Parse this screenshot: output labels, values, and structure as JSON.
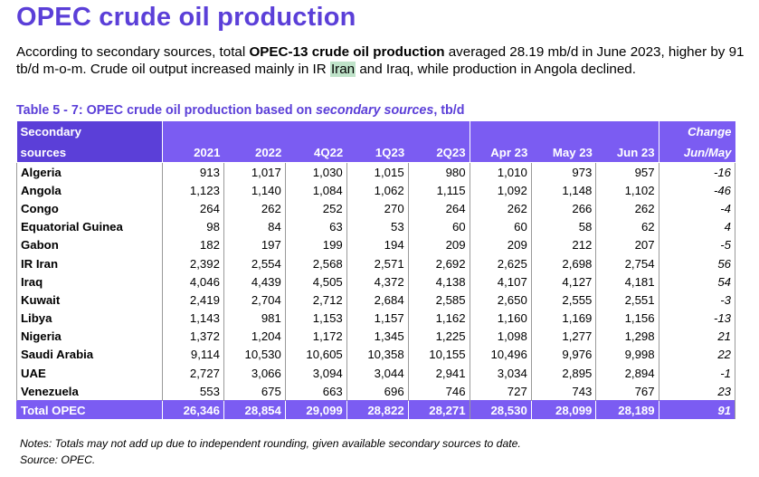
{
  "title": "OPEC crude oil production",
  "intro": {
    "part1": "According to secondary sources, total ",
    "bold": "OPEC-13 crude oil production",
    "part2": " averaged 28.19 mb/d in June 2023, higher by 91 tb/d m-o-m. Crude oil output increased mainly in IR ",
    "highlight": "Iran",
    "part3": " and Iraq, while production in Angola declined."
  },
  "table_caption": {
    "prefix": "Table 5 - 7: OPEC crude oil production based on ",
    "italic": "secondary sources",
    "suffix": ", tb/d"
  },
  "header": {
    "row1_label": "Secondary",
    "row2_label": "sources",
    "change_label": "Change",
    "change_sub": "Jun/May",
    "periods": [
      "2021",
      "2022",
      "4Q22",
      "1Q23",
      "2Q23",
      "Apr 23",
      "May 23",
      "Jun 23"
    ]
  },
  "rows": [
    {
      "country": "Algeria",
      "values": [
        "913",
        "1,017",
        "1,030",
        "1,015",
        "980",
        "1,010",
        "973",
        "957"
      ],
      "change": "-16"
    },
    {
      "country": "Angola",
      "values": [
        "1,123",
        "1,140",
        "1,084",
        "1,062",
        "1,115",
        "1,092",
        "1,148",
        "1,102"
      ],
      "change": "-46"
    },
    {
      "country": "Congo",
      "values": [
        "264",
        "262",
        "252",
        "270",
        "264",
        "262",
        "266",
        "262"
      ],
      "change": "-4"
    },
    {
      "country": "Equatorial Guinea",
      "values": [
        "98",
        "84",
        "63",
        "53",
        "60",
        "60",
        "58",
        "62"
      ],
      "change": "4"
    },
    {
      "country": "Gabon",
      "values": [
        "182",
        "197",
        "199",
        "194",
        "209",
        "209",
        "212",
        "207"
      ],
      "change": "-5"
    },
    {
      "country": "IR Iran",
      "values": [
        "2,392",
        "2,554",
        "2,568",
        "2,571",
        "2,692",
        "2,625",
        "2,698",
        "2,754"
      ],
      "change": "56"
    },
    {
      "country": "Iraq",
      "values": [
        "4,046",
        "4,439",
        "4,505",
        "4,372",
        "4,138",
        "4,107",
        "4,127",
        "4,181"
      ],
      "change": "54"
    },
    {
      "country": "Kuwait",
      "values": [
        "2,419",
        "2,704",
        "2,712",
        "2,684",
        "2,585",
        "2,650",
        "2,555",
        "2,551"
      ],
      "change": "-3"
    },
    {
      "country": "Libya",
      "values": [
        "1,143",
        "981",
        "1,153",
        "1,157",
        "1,162",
        "1,160",
        "1,169",
        "1,156"
      ],
      "change": "-13"
    },
    {
      "country": "Nigeria",
      "values": [
        "1,372",
        "1,204",
        "1,172",
        "1,345",
        "1,225",
        "1,098",
        "1,277",
        "1,298"
      ],
      "change": "21"
    },
    {
      "country": "Saudi Arabia",
      "values": [
        "9,114",
        "10,530",
        "10,605",
        "10,358",
        "10,155",
        "10,496",
        "9,976",
        "9,998"
      ],
      "change": "22"
    },
    {
      "country": "UAE",
      "values": [
        "2,727",
        "3,066",
        "3,094",
        "3,044",
        "2,941",
        "3,034",
        "2,895",
        "2,894"
      ],
      "change": "-1"
    },
    {
      "country": "Venezuela",
      "values": [
        "553",
        "675",
        "663",
        "696",
        "746",
        "727",
        "743",
        "767"
      ],
      "change": "23"
    }
  ],
  "total": {
    "label": "Total  OPEC",
    "values": [
      "26,346",
      "28,854",
      "29,099",
      "28,822",
      "28,271",
      "28,530",
      "28,099",
      "28,189"
    ],
    "change": "91"
  },
  "notes": {
    "line1": "Notes: Totals may not add up due to independent rounding, given available secondary sources to date.",
    "line2": "Source: OPEC."
  }
}
